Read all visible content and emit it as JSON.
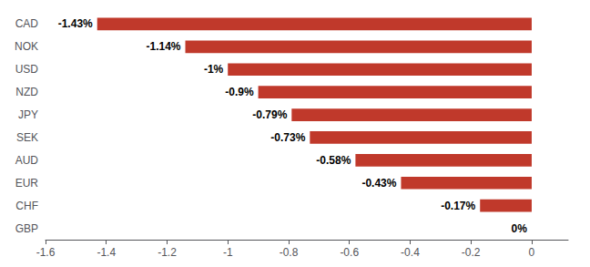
{
  "chart_data": {
    "type": "bar",
    "orientation": "horizontal",
    "categories": [
      "GBP",
      "CHF",
      "EUR",
      "AUD",
      "SEK",
      "JPY",
      "NZD",
      "USD",
      "NOK",
      "CAD"
    ],
    "values": [
      0.0,
      -0.17,
      -0.43,
      -0.58,
      -0.73,
      -0.79,
      -0.9,
      -1.0,
      -1.14,
      -1.43
    ],
    "value_labels": [
      "0%",
      "-0.17%",
      "-0.43%",
      "-0.58%",
      "-0.73%",
      "-0.79%",
      "-0.9%",
      "-1%",
      "-1.14%",
      "-1.43%"
    ],
    "data_labels": true,
    "color": "#C0392B",
    "xlim": [
      -1.6,
      0.12
    ],
    "xticks": [
      -1.6,
      -1.4,
      -1.2,
      -1,
      -0.8,
      -0.6,
      -0.4,
      -0.2,
      0
    ],
    "grid": false
  }
}
